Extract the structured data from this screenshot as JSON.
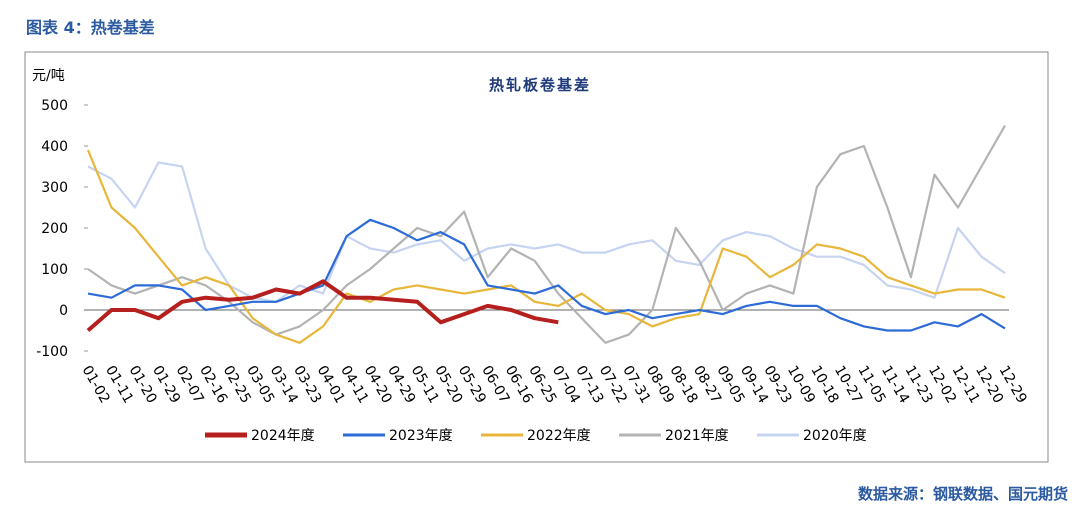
{
  "header": {
    "figure_title": "图表 4：热卷基差"
  },
  "chart_data": {
    "type": "line",
    "title": "热轧板卷基差",
    "y_label": "元/吨",
    "categories": [
      "01-02",
      "01-11",
      "01-20",
      "01-29",
      "02-07",
      "02-16",
      "02-25",
      "03-05",
      "03-14",
      "03-23",
      "04-01",
      "04-11",
      "04-20",
      "04-29",
      "05-11",
      "05-20",
      "05-29",
      "06-07",
      "06-16",
      "06-25",
      "07-04",
      "07-13",
      "07-22",
      "07-31",
      "08-09",
      "08-18",
      "08-27",
      "09-05",
      "09-14",
      "09-23",
      "10-09",
      "10-18",
      "10-27",
      "11-05",
      "11-14",
      "11-23",
      "12-02",
      "12-11",
      "12-20",
      "12-29"
    ],
    "series": [
      {
        "name": "2024年度",
        "color": "#b5201f",
        "values": [
          -50,
          0,
          0,
          -20,
          20,
          30,
          25,
          30,
          50,
          40,
          70,
          30,
          30,
          25,
          20,
          -30,
          -10,
          10,
          0,
          -20,
          -30,
          null,
          null,
          null,
          null,
          null,
          null,
          null,
          null,
          null,
          null,
          null,
          null,
          null,
          null,
          null,
          null,
          null,
          null,
          null
        ]
      },
      {
        "name": "2023年度",
        "color": "#2d6bd6",
        "values": [
          40,
          30,
          60,
          60,
          50,
          0,
          10,
          20,
          20,
          40,
          60,
          180,
          220,
          200,
          170,
          190,
          160,
          60,
          50,
          40,
          60,
          10,
          -10,
          0,
          -20,
          -10,
          0,
          -10,
          10,
          20,
          10,
          10,
          -20,
          -40,
          -50,
          -50,
          -30,
          -40,
          -10,
          -45
        ]
      },
      {
        "name": "2022年度",
        "color": "#e8b73a",
        "values": [
          390,
          250,
          200,
          130,
          60,
          80,
          60,
          -20,
          -60,
          -80,
          -40,
          40,
          20,
          50,
          60,
          50,
          40,
          50,
          60,
          20,
          10,
          40,
          0,
          -10,
          -40,
          -20,
          -10,
          150,
          130,
          80,
          110,
          160,
          150,
          130,
          80,
          60,
          40,
          50,
          50,
          30
        ]
      },
      {
        "name": "2021年度",
        "color": "#b3b3b3",
        "values": [
          100,
          60,
          40,
          60,
          80,
          60,
          20,
          -30,
          -60,
          -40,
          0,
          60,
          100,
          150,
          200,
          180,
          240,
          80,
          150,
          120,
          40,
          -20,
          -80,
          -60,
          0,
          200,
          120,
          0,
          40,
          60,
          40,
          300,
          380,
          400,
          250,
          80,
          330,
          250,
          350,
          450
        ]
      },
      {
        "name": "2020年度",
        "color": "#c6d4f1",
        "values": [
          350,
          320,
          250,
          360,
          350,
          150,
          60,
          30,
          20,
          60,
          40,
          180,
          150,
          140,
          160,
          170,
          120,
          150,
          160,
          150,
          160,
          140,
          140,
          160,
          170,
          120,
          110,
          170,
          190,
          180,
          150,
          130,
          130,
          110,
          60,
          50,
          30,
          200,
          130,
          90
        ]
      }
    ],
    "ylim": [
      -100,
      500
    ],
    "yticks": [
      -100,
      0,
      100,
      200,
      300,
      400,
      500
    ],
    "legend": "bottom"
  },
  "footer": {
    "source": "数据来源：钢联数据、国元期货"
  }
}
